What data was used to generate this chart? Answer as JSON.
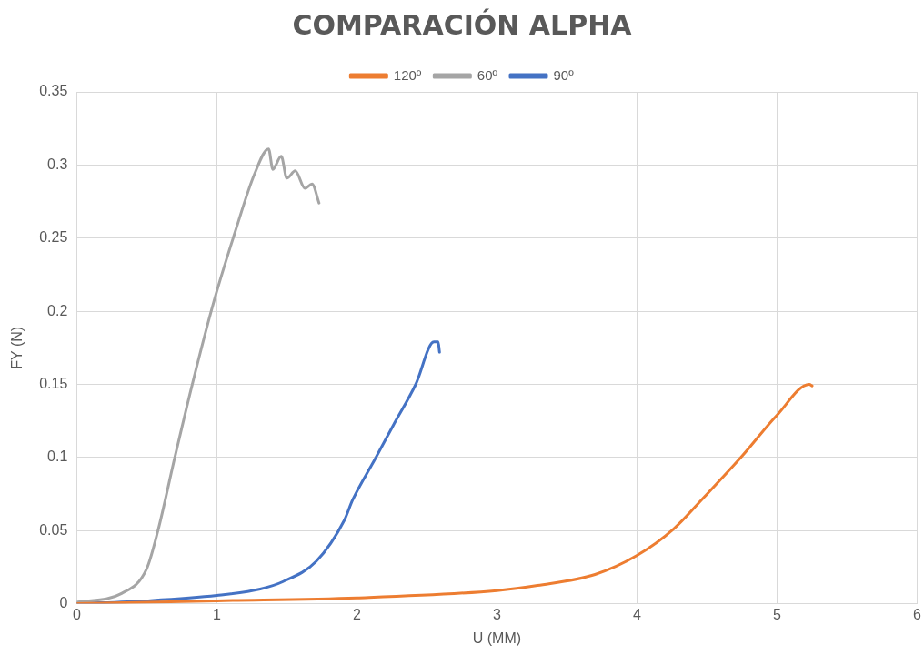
{
  "chart_data": {
    "type": "line",
    "title": "COMPARACIÓN ALPHA",
    "xlabel": "U (MM)",
    "ylabel": "FY (N)",
    "xlim": [
      0,
      6
    ],
    "xticks": [
      0,
      1,
      2,
      3,
      4,
      5,
      6
    ],
    "ylim": [
      0,
      0.35
    ],
    "yticks": [
      0,
      0.05,
      0.1,
      0.15,
      0.2,
      0.25,
      0.3,
      0.35
    ],
    "grid": true,
    "legend": "top",
    "marker": "none",
    "series": [
      {
        "name": "120º",
        "color": "#ed7d31",
        "x": [
          0,
          0.5,
          1,
          2,
          3,
          3.29,
          3.7,
          4.0,
          4.26,
          4.48,
          4.75,
          5.0,
          5.23,
          5.25
        ],
        "values": [
          0,
          0.001,
          0.002,
          0.004,
          0.009,
          0.0125,
          0.02,
          0.033,
          0.051,
          0.073,
          0.101,
          0.129,
          0.15,
          0.149
        ]
      },
      {
        "name": "60º",
        "color": "#a5a5a5",
        "x": [
          0,
          0.32,
          0.5,
          0.58,
          0.7,
          0.83,
          0.98,
          1.13,
          1.27,
          1.37,
          1.4,
          1.46,
          1.5,
          1.56,
          1.63,
          1.68,
          1.73
        ],
        "values": [
          0.001,
          0.007,
          0.024,
          0.05,
          0.1,
          0.152,
          0.207,
          0.254,
          0.294,
          0.311,
          0.297,
          0.306,
          0.291,
          0.296,
          0.284,
          0.287,
          0.274
        ]
      },
      {
        "name": "90º",
        "color": "#4472c4",
        "x": [
          0,
          0.5,
          1.0,
          1.31,
          1.47,
          1.71,
          1.91,
          1.97,
          2.13,
          2.26,
          2.42,
          2.55,
          2.58,
          2.59
        ],
        "values": [
          0,
          0.002,
          0.0056,
          0.01,
          0.015,
          0.029,
          0.057,
          0.071,
          0.099,
          0.122,
          0.15,
          0.179,
          0.179,
          0.172
        ]
      }
    ]
  }
}
